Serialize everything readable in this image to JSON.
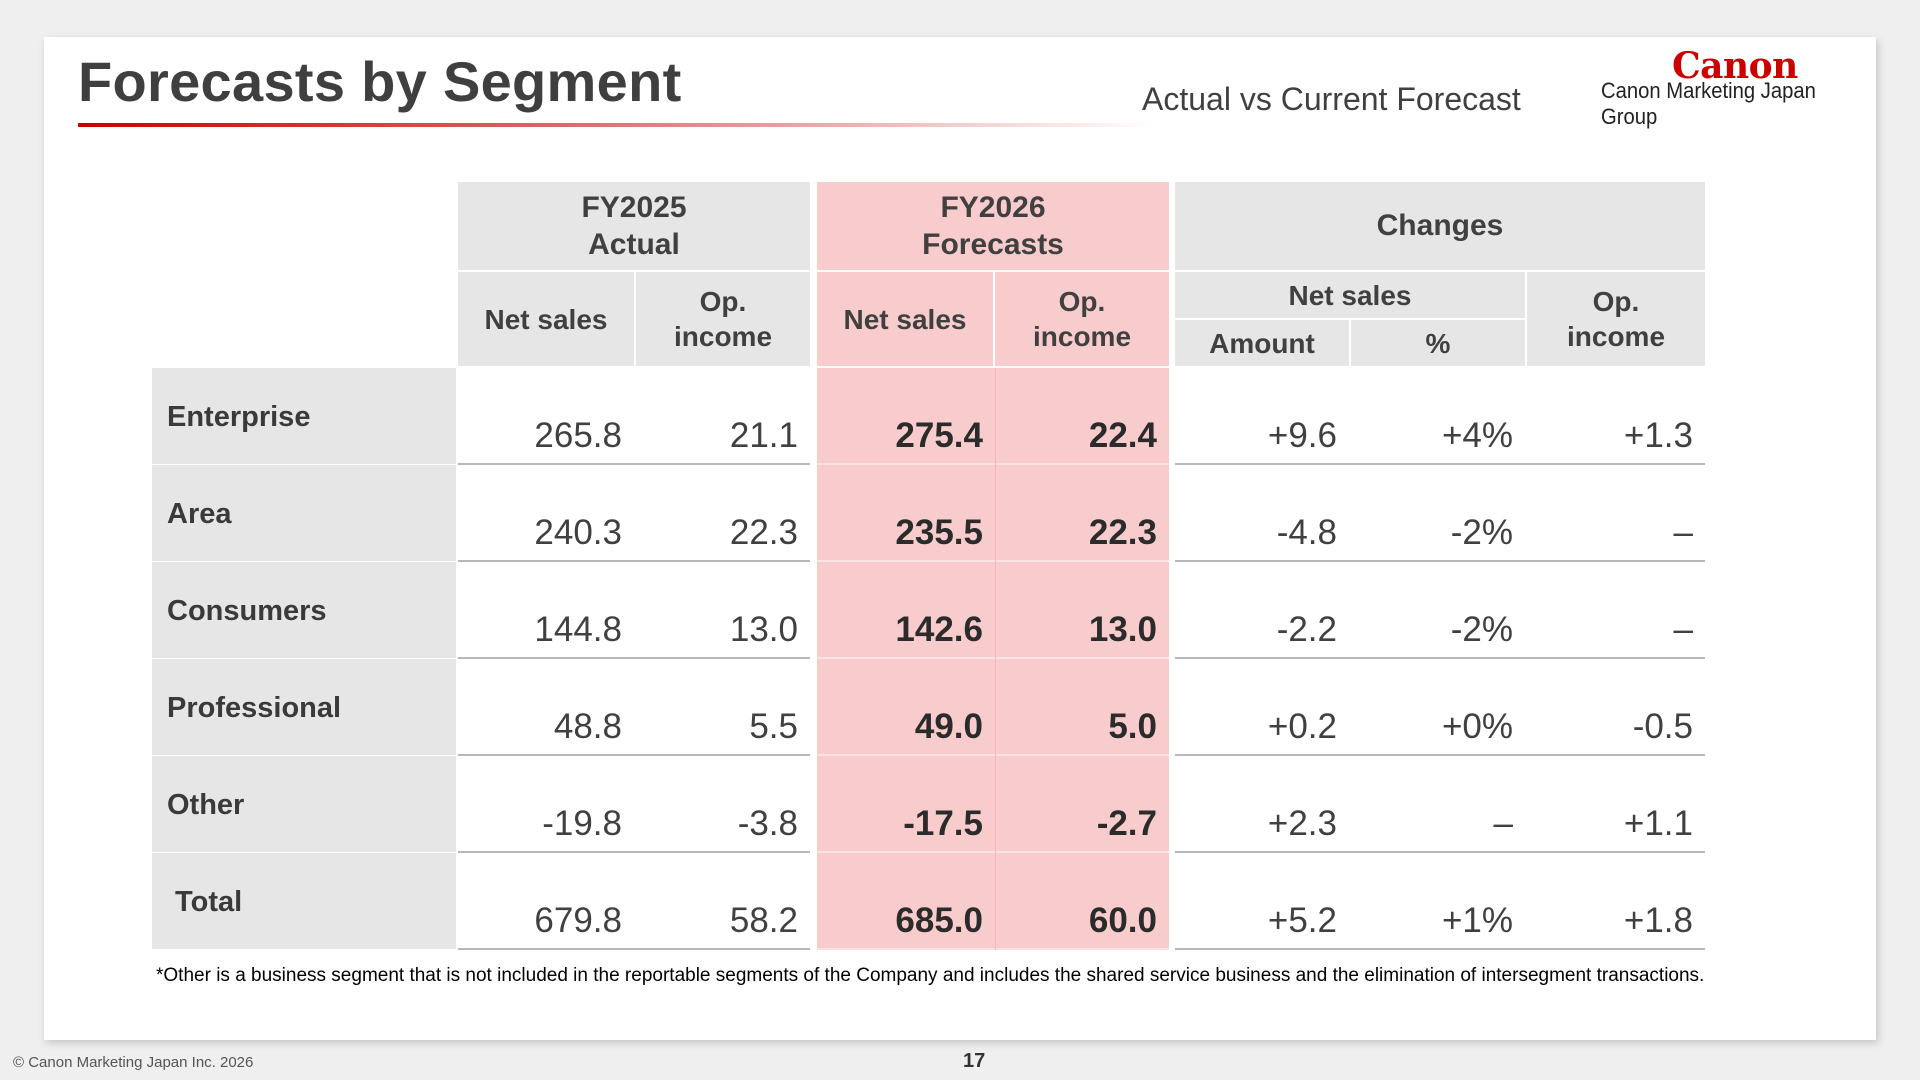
{
  "header": {
    "title": "Forecasts by Segment",
    "subtitle": "Actual vs Current Forecast",
    "logo_word": "Canon",
    "logo_sub": "Canon Marketing Japan Group"
  },
  "table": {
    "groups": {
      "fy2025": [
        "FY2025",
        "Actual"
      ],
      "fy2026": [
        "FY2026",
        "Forecasts"
      ],
      "changes": "Changes"
    },
    "subheaders": {
      "net_sales": "Net sales",
      "op_income": [
        "Op.",
        "income"
      ],
      "amount": "Amount",
      "percent": "%"
    },
    "rows": [
      {
        "label": "Enterprise",
        "values": [
          "265.8",
          "21.1",
          "275.4",
          "22.4",
          "+9.6",
          "+4%",
          "+1.3"
        ]
      },
      {
        "label": "Area",
        "values": [
          "240.3",
          "22.3",
          "235.5",
          "22.3",
          "-4.8",
          "-2%",
          "–"
        ]
      },
      {
        "label": "Consumers",
        "values": [
          "144.8",
          "13.0",
          "142.6",
          "13.0",
          "-2.2",
          "-2%",
          "–"
        ]
      },
      {
        "label": "Professional",
        "values": [
          "48.8",
          "5.5",
          "49.0",
          "5.0",
          "+0.2",
          "+0%",
          "-0.5"
        ]
      },
      {
        "label": "Other",
        "values": [
          "-19.8",
          "-3.8",
          "-17.5",
          "-2.7",
          "+2.3",
          "–",
          "+1.1"
        ]
      },
      {
        "label": " Total",
        "values": [
          "679.8",
          "58.2",
          "685.0",
          "60.0",
          "+5.2",
          "+1%",
          "+1.8"
        ]
      }
    ]
  },
  "footnote": "*Other is a business segment that is not included in the reportable segments of the Company and includes the shared service business and the elimination of intersegment transactions.",
  "footer": {
    "copyright": "© Canon Marketing Japan Inc. 2026",
    "page_number": "17"
  },
  "colors": {
    "accent_red": "#cc0000",
    "forecast_pink": "#f8cccc",
    "header_grey": "#e6e6e6"
  }
}
